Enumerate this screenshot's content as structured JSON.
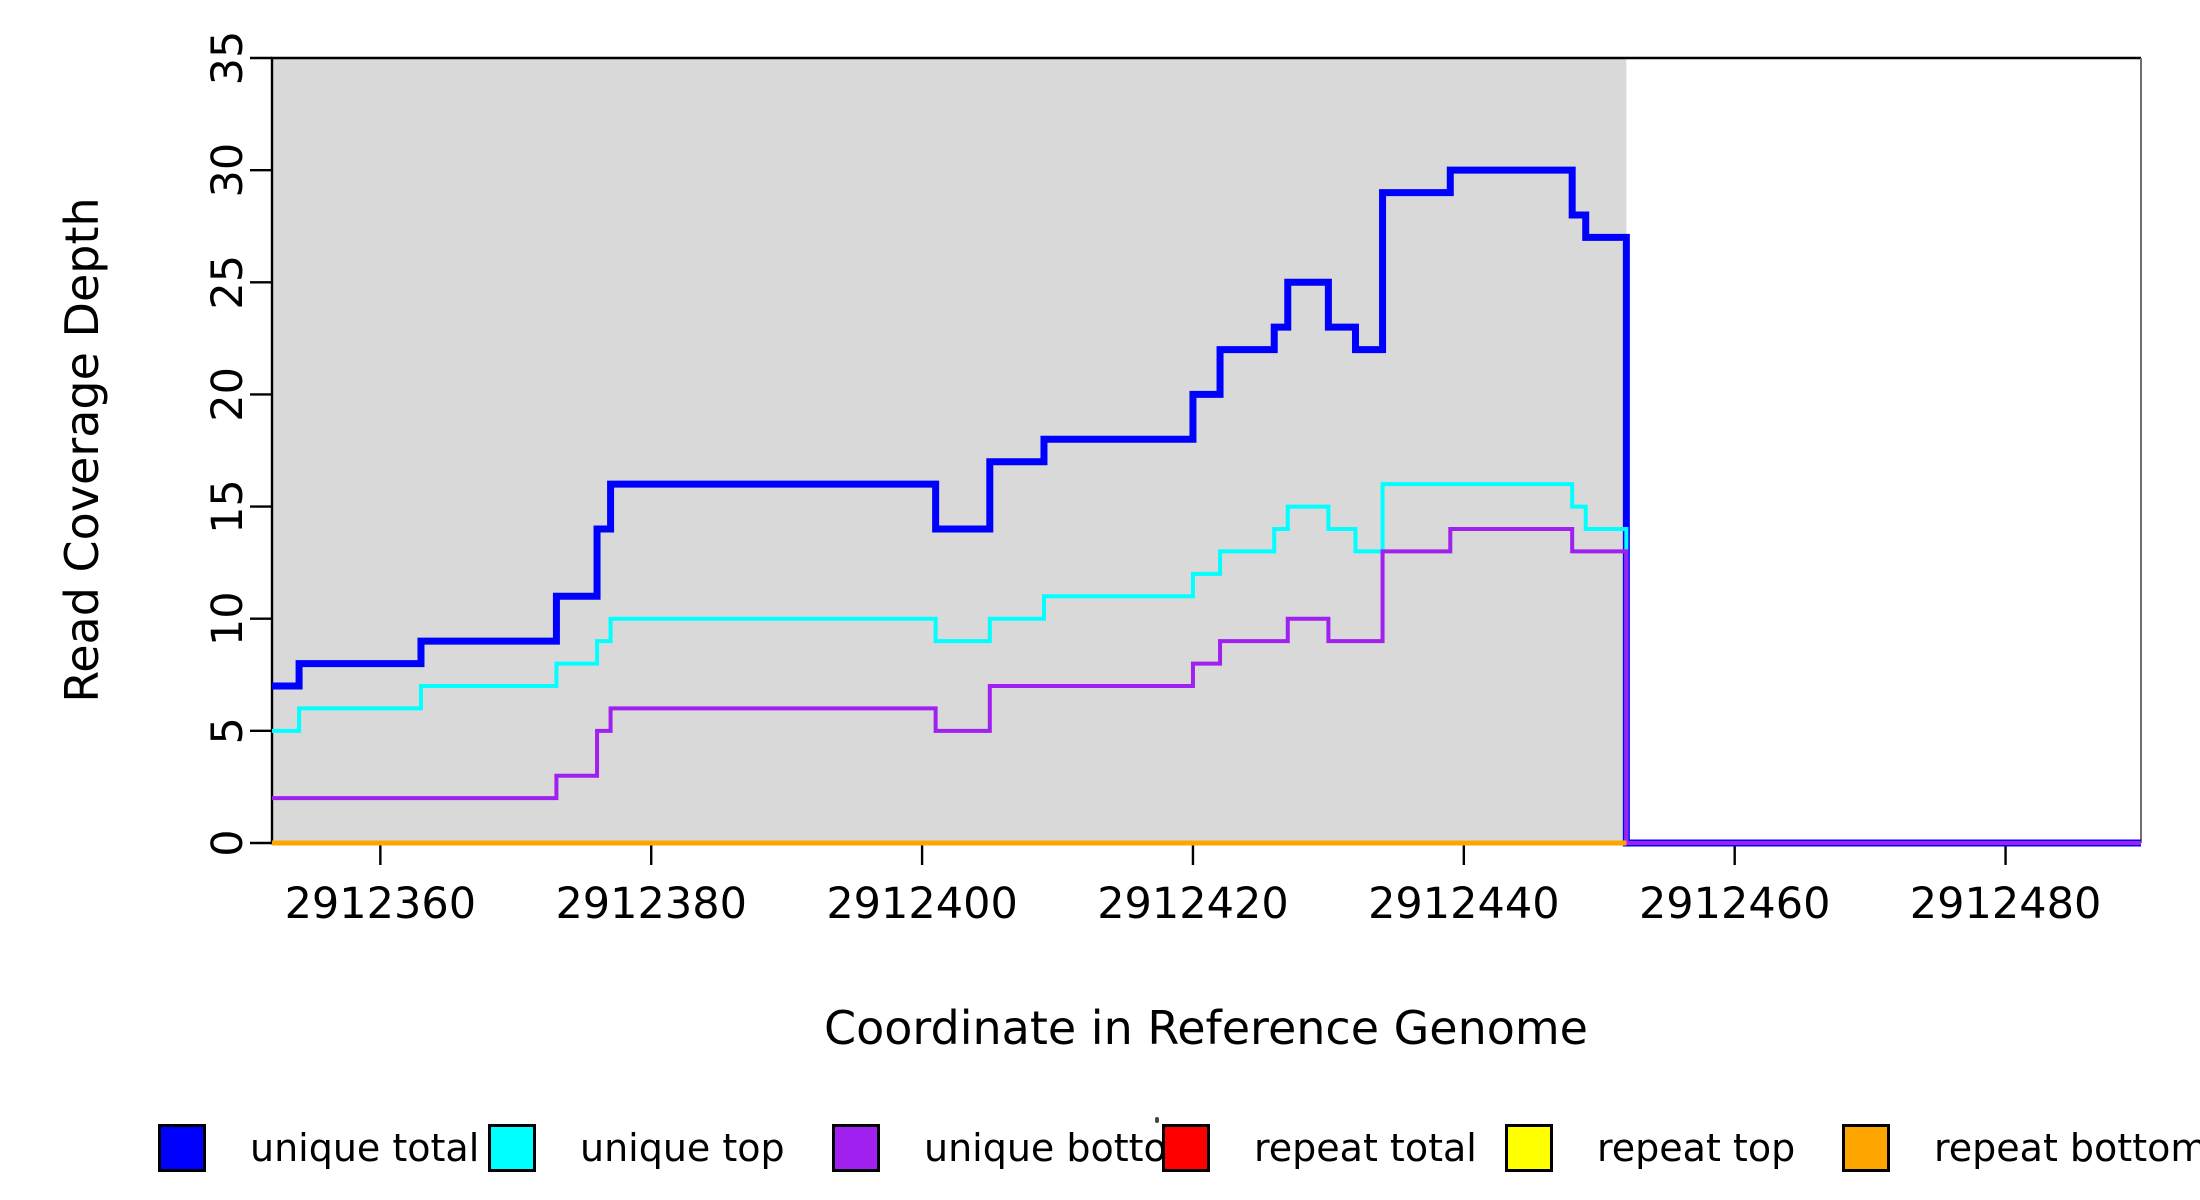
{
  "figure_title": "",
  "chart_data": {
    "type": "line",
    "step_mode": "step-after",
    "title": "",
    "xlabel": "Coordinate in Reference Genome",
    "ylabel": "Read Coverage Depth",
    "xlim": [
      2912352,
      2912490
    ],
    "ylim": [
      0,
      35
    ],
    "x_ticks": [
      2912360,
      2912380,
      2912400,
      2912420,
      2912440,
      2912460,
      2912480
    ],
    "y_ticks": [
      0,
      5,
      10,
      15,
      20,
      25,
      30,
      35
    ],
    "grid": false,
    "legend_position": "bottom",
    "shaded_region": {
      "x_start": 2912352,
      "x_end": 2912452,
      "color": "#D9D9D9"
    },
    "series": [
      {
        "name": "unique total",
        "color": "#0000FF",
        "line_width": 7,
        "x_end": 2912490,
        "steps": [
          [
            2912352,
            7
          ],
          [
            2912354,
            8
          ],
          [
            2912363,
            9
          ],
          [
            2912373,
            11
          ],
          [
            2912376,
            14
          ],
          [
            2912377,
            16
          ],
          [
            2912401,
            14
          ],
          [
            2912405,
            17
          ],
          [
            2912409,
            18
          ],
          [
            2912420,
            20
          ],
          [
            2912422,
            22
          ],
          [
            2912426,
            23
          ],
          [
            2912427,
            25
          ],
          [
            2912430,
            23
          ],
          [
            2912432,
            22
          ],
          [
            2912434,
            29
          ],
          [
            2912439,
            30
          ],
          [
            2912448,
            28
          ],
          [
            2912449,
            27
          ],
          [
            2912452,
            0
          ]
        ]
      },
      {
        "name": "unique top",
        "color": "#00FFFF",
        "line_width": 4,
        "x_end": 2912490,
        "steps": [
          [
            2912352,
            5
          ],
          [
            2912354,
            6
          ],
          [
            2912363,
            7
          ],
          [
            2912373,
            8
          ],
          [
            2912376,
            9
          ],
          [
            2912377,
            10
          ],
          [
            2912401,
            9
          ],
          [
            2912405,
            10
          ],
          [
            2912409,
            11
          ],
          [
            2912420,
            12
          ],
          [
            2912422,
            13
          ],
          [
            2912426,
            14
          ],
          [
            2912427,
            15
          ],
          [
            2912430,
            14
          ],
          [
            2912432,
            13
          ],
          [
            2912434,
            16
          ],
          [
            2912448,
            15
          ],
          [
            2912449,
            14
          ],
          [
            2912452,
            0
          ]
        ]
      },
      {
        "name": "unique bottom",
        "color": "#A020F0",
        "line_width": 4,
        "x_end": 2912490,
        "steps": [
          [
            2912352,
            2
          ],
          [
            2912373,
            3
          ],
          [
            2912376,
            5
          ],
          [
            2912377,
            6
          ],
          [
            2912401,
            5
          ],
          [
            2912405,
            7
          ],
          [
            2912420,
            8
          ],
          [
            2912422,
            9
          ],
          [
            2912427,
            10
          ],
          [
            2912430,
            9
          ],
          [
            2912434,
            13
          ],
          [
            2912439,
            14
          ],
          [
            2912448,
            13
          ],
          [
            2912452,
            0
          ]
        ]
      },
      {
        "name": "repeat total",
        "color": "#FF0000",
        "line_width": 4,
        "x_end": 2912452,
        "steps": [
          [
            2912352,
            0
          ]
        ]
      },
      {
        "name": "repeat top",
        "color": "#FFFF00",
        "line_width": 4,
        "x_end": 2912452,
        "steps": [
          [
            2912352,
            0
          ]
        ]
      },
      {
        "name": "repeat bottom",
        "color": "#FFA500",
        "line_width": 5,
        "x_end": 2912452,
        "steps": [
          [
            2912352,
            0
          ]
        ]
      }
    ]
  },
  "legend": {
    "items": [
      {
        "label": "unique total",
        "color": "#0000FF"
      },
      {
        "label": "unique top",
        "color": "#00FFFF"
      },
      {
        "label": "unique bottom",
        "color": "#A020F0"
      },
      {
        "label": "repeat total",
        "color": "#FF0000"
      },
      {
        "label": "repeat top",
        "color": "#FFFF00"
      },
      {
        "label": "repeat bottom",
        "color": "#FFA500"
      }
    ]
  },
  "colors": {
    "background": "#FFFFFF",
    "plot_shaded": "#D9D9D9",
    "axis": "#000000",
    "box_right_edge": "#6F6F6F"
  }
}
